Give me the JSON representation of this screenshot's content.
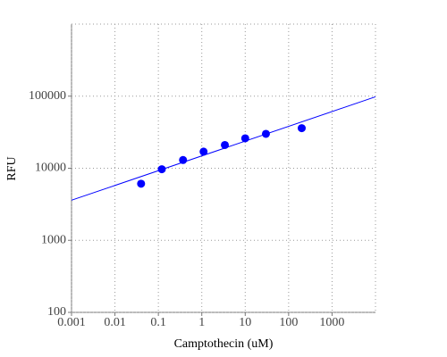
{
  "chart_data": {
    "type": "scatter",
    "xlabel": "Camptothecin (uM)",
    "ylabel": "RFU",
    "xscale": "log",
    "yscale": "log",
    "grid": true,
    "xlim": [
      0.001,
      10000
    ],
    "xticks": [
      0.001,
      0.01,
      0.1,
      1,
      10,
      100,
      1000
    ],
    "ylim": [
      100,
      1000000
    ],
    "yticks": [
      100,
      1000,
      10000,
      100000
    ],
    "series": [
      {
        "mode": "markers",
        "color": "#0000ff",
        "x": [
          0.04,
          0.12,
          0.37,
          1.1,
          3.4,
          10,
          30,
          200
        ],
        "values": [
          6100,
          9700,
          13000,
          17000,
          21000,
          26000,
          30000,
          36000
        ]
      },
      {
        "mode": "line",
        "color": "#0000ff",
        "x": [
          0.001,
          10000
        ],
        "values": [
          3600,
          98000
        ]
      }
    ]
  }
}
